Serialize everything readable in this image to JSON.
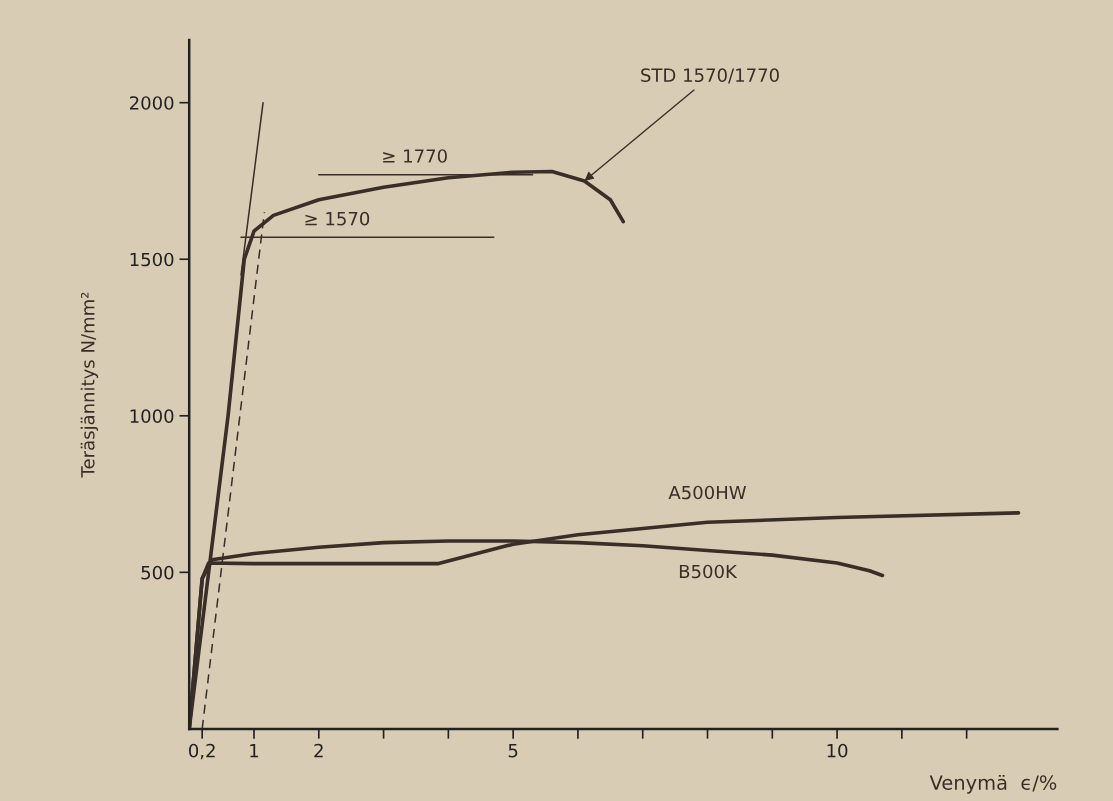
{
  "chart_data": {
    "type": "line",
    "xlabel": "Venymä  ϵ/%",
    "ylabel": "Teräsjännitys N/mm²",
    "xlim": [
      0,
      13.4
    ],
    "ylim": [
      0,
      2200
    ],
    "xticks": [
      {
        "value": 0.2,
        "label": "0,2"
      },
      1,
      2,
      {
        "value": 3,
        "label": null
      },
      {
        "value": 4,
        "label": null
      },
      5,
      {
        "value": 6,
        "label": null
      },
      {
        "value": 7,
        "label": null
      },
      {
        "value": 8,
        "label": null
      },
      {
        "value": 9,
        "label": null
      },
      10,
      {
        "value": 11,
        "label": null
      },
      {
        "value": 12,
        "label": null
      }
    ],
    "yticks": [
      500,
      1000,
      1500,
      2000
    ],
    "grid": false,
    "legend": false,
    "marker": "none",
    "series": [
      {
        "name": "STD 1570/1770",
        "color": "#3a2e28",
        "x": [
          0,
          0.3,
          0.6,
          0.85,
          1.0,
          1.3,
          2,
          3,
          4,
          5,
          5.6,
          6.1,
          6.5,
          6.7
        ],
        "values": [
          0,
          500,
          1000,
          1500,
          1590,
          1640,
          1690,
          1730,
          1760,
          1778,
          1780,
          1750,
          1690,
          1620
        ]
      },
      {
        "name": "A500HW",
        "color": "#3a2e28",
        "x": [
          0,
          0.2,
          0.3,
          1,
          2,
          3,
          3.85,
          5,
          6,
          8,
          10,
          12.8
        ],
        "values": [
          0,
          480,
          530,
          528,
          528,
          528,
          528,
          590,
          620,
          660,
          675,
          690
        ]
      },
      {
        "name": "B500K",
        "color": "#3a2e28",
        "x": [
          0,
          0.2,
          0.35,
          1,
          2,
          3,
          4,
          5,
          6,
          7,
          8,
          9,
          10,
          10.5,
          10.7
        ],
        "values": [
          0,
          480,
          540,
          560,
          580,
          595,
          600,
          600,
          595,
          585,
          570,
          555,
          530,
          505,
          490
        ]
      },
      {
        "color": "#3a2e28",
        "x": [
          0.8,
          1.14
        ],
        "values": [
          1450,
          2000
        ]
      },
      {
        "color": "#3a2e28",
        "line_style": "dashed",
        "x": [
          0.2,
          1.16
        ],
        "values": [
          0,
          1650
        ]
      },
      {
        "name": "≥ 1770",
        "color": "#3a2e28",
        "x": [
          2,
          5.3
        ],
        "values": [
          1770,
          1770
        ]
      },
      {
        "name": "≥ 1570",
        "color": "#3a2e28",
        "x": [
          0.8,
          4.7
        ],
        "values": [
          1570,
          1570
        ]
      }
    ]
  }
}
